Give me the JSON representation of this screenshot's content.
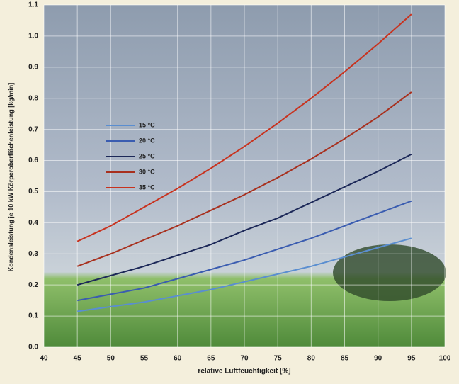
{
  "chart_data": {
    "type": "line",
    "xlabel": "relative Luftfeuchtigkeit [%]",
    "ylabel": "Kondensleistung je 10 kW Körperoberflächenleistung [kg/min]",
    "x": [
      45,
      50,
      55,
      60,
      65,
      70,
      75,
      80,
      85,
      90,
      95
    ],
    "series": [
      {
        "name": "15 °C",
        "color": "#5a8ed0",
        "values": [
          0.115,
          0.13,
          0.145,
          0.165,
          0.185,
          0.21,
          0.235,
          0.26,
          0.29,
          0.32,
          0.35
        ]
      },
      {
        "name": "20 °C",
        "color": "#3a5cb0",
        "values": [
          0.15,
          0.17,
          0.19,
          0.22,
          0.25,
          0.28,
          0.315,
          0.35,
          0.39,
          0.43,
          0.47
        ]
      },
      {
        "name": "25 °C",
        "color": "#1c2858",
        "values": [
          0.2,
          0.23,
          0.26,
          0.295,
          0.33,
          0.375,
          0.415,
          0.465,
          0.515,
          0.565,
          0.62
        ]
      },
      {
        "name": "30 °C",
        "color": "#a8301e",
        "values": [
          0.26,
          0.3,
          0.345,
          0.39,
          0.44,
          0.49,
          0.545,
          0.605,
          0.67,
          0.74,
          0.82
        ]
      },
      {
        "name": "35 °C",
        "color": "#c8321e",
        "values": [
          0.34,
          0.39,
          0.45,
          0.51,
          0.575,
          0.645,
          0.72,
          0.8,
          0.885,
          0.975,
          1.07
        ]
      }
    ],
    "xlim": [
      40,
      100
    ],
    "xticks": [
      40,
      45,
      50,
      55,
      60,
      65,
      70,
      75,
      80,
      85,
      90,
      95,
      100
    ],
    "ylim": [
      0,
      1.1
    ],
    "yticks": [
      {
        "value": 0,
        "label": "0.0"
      },
      0.1,
      0.2,
      0.3,
      0.4,
      0.5,
      0.6,
      0.7,
      0.8,
      0.9,
      {
        "value": 1,
        "label": "1.0"
      },
      1.1
    ],
    "grid": true
  }
}
